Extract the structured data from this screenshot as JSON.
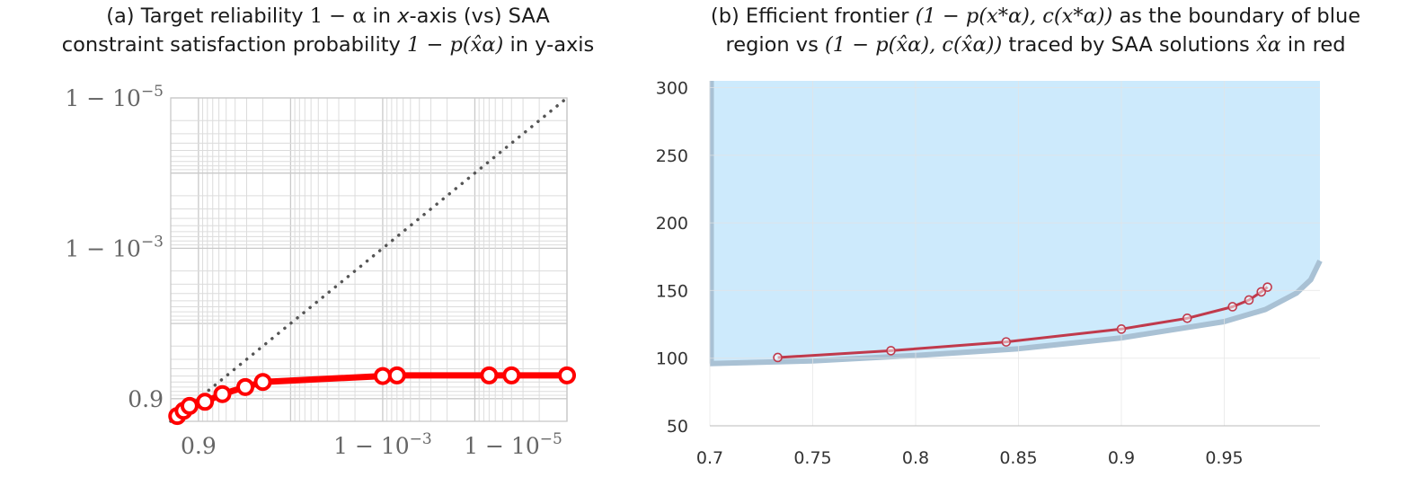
{
  "titles": {
    "a": {
      "line1_pre": "(a) Target reliability ",
      "line1_math": "1 − α",
      "line1_mid": " in ",
      "line1_xaxis": "x",
      "line1_post": "-axis (vs) SAA",
      "line2_pre": "constraint satisfaction probability ",
      "line2_math": "1 − p(x̂α)",
      "line2_post": " in y-axis"
    },
    "b": {
      "line1_pre": "(b) Efficient frontier ",
      "line1_math": "(1 − p(x*α), c(x*α))",
      "line1_post": " as the boundary of blue",
      "line2_pre": "region vs ",
      "line2_math": "(1 − p(x̂α), c(x̂α))",
      "line2_post": " traced by SAA solutions ",
      "line2_math2": "x̂α",
      "line2_post2": " in red"
    }
  },
  "chart_data": [
    {
      "type": "line",
      "id": "a",
      "x_scale": "log(1-x)",
      "y_scale": "log(1-y)",
      "xlim_alpha": [
        0.2,
        1e-05
      ],
      "ylim_alpha": [
        0.2,
        1e-05
      ],
      "x_ticks": [
        {
          "alpha": 0.1,
          "label": "0.9"
        },
        {
          "alpha": 0.001,
          "label": "1 − 10⁻³"
        },
        {
          "alpha": 1e-05,
          "label": "1 − 10⁻⁵"
        }
      ],
      "y_ticks": [
        {
          "alpha": 0.1,
          "label": "0.9"
        },
        {
          "alpha": 0.001,
          "label": "1 − 10⁻³"
        },
        {
          "alpha": 1e-05,
          "label": "1 − 10⁻⁵"
        }
      ],
      "series": [
        {
          "name": "diagonal",
          "style": "dotted",
          "color": "#555555",
          "points": [
            [
              0.2,
              0.2
            ],
            [
              1e-05,
              1e-05
            ]
          ]
        },
        {
          "name": "SAA",
          "style": "solid",
          "color": "#ff0000",
          "points": [
            [
              0.17,
              0.17
            ],
            [
              0.145,
              0.145
            ],
            [
              0.125,
              0.125
            ],
            [
              0.085,
              0.11
            ],
            [
              0.055,
              0.087
            ],
            [
              0.031,
              0.07
            ],
            [
              0.02,
              0.06
            ],
            [
              0.001,
              0.05
            ],
            [
              0.0007,
              0.049
            ],
            [
              7e-05,
              0.049
            ],
            [
              4e-05,
              0.049
            ],
            [
              1e-05,
              0.049
            ]
          ]
        }
      ]
    },
    {
      "type": "area",
      "id": "b",
      "xlim": [
        0.7,
        0.9965
      ],
      "ylim": [
        50,
        305
      ],
      "x_ticks": [
        "0.7",
        "0.75",
        "0.8",
        "0.85",
        "0.9",
        "0.95"
      ],
      "x_tick_values": [
        0.7,
        0.75,
        0.8,
        0.85,
        0.9,
        0.95
      ],
      "y_ticks": [
        "50",
        "100",
        "150",
        "200",
        "250",
        "300"
      ],
      "y_tick_values": [
        50,
        100,
        150,
        200,
        250,
        300
      ],
      "frontier": {
        "name": "efficient frontier",
        "fill": "#cdeafc",
        "stroke": "#a9c1d4",
        "points": [
          [
            0.7,
            96
          ],
          [
            0.75,
            98
          ],
          [
            0.8,
            102
          ],
          [
            0.85,
            107
          ],
          [
            0.9,
            115
          ],
          [
            0.95,
            127
          ],
          [
            0.97,
            136
          ],
          [
            0.985,
            148
          ],
          [
            0.992,
            158
          ],
          [
            0.9965,
            172
          ]
        ]
      },
      "saa": {
        "name": "SAA solutions",
        "color": "#c03a4c",
        "points": [
          [
            0.733,
            100.5
          ],
          [
            0.788,
            105.5
          ],
          [
            0.844,
            112
          ],
          [
            0.9,
            121.5
          ],
          [
            0.932,
            129.5
          ],
          [
            0.954,
            138
          ],
          [
            0.962,
            143
          ],
          [
            0.968,
            149
          ],
          [
            0.971,
            152.5
          ]
        ]
      }
    }
  ]
}
